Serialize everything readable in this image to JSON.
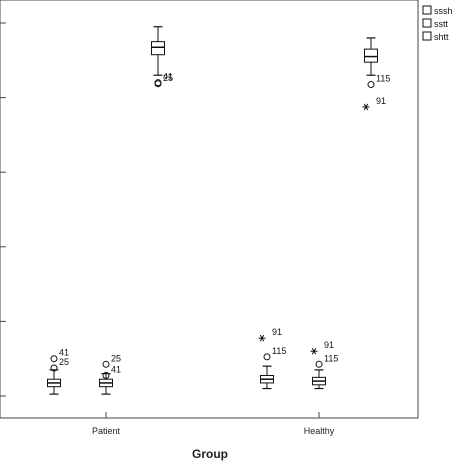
{
  "chart_data": {
    "type": "boxplot",
    "title": "",
    "xlabel": "Group",
    "ylabel": "",
    "categories": [
      "Patient",
      "Healthy"
    ],
    "ylim": [
      0,
      100
    ],
    "legend": {
      "position": "top-right",
      "entries": [
        "sssh",
        "sstt",
        "shtt"
      ]
    },
    "series": [
      {
        "name": "sssh",
        "boxes": [
          {
            "category": "Patient",
            "whisker_low": 0.5,
            "q1": 2.5,
            "median": 3.5,
            "q3": 4.5,
            "whisker_high": 7,
            "outliers": [
              {
                "value": 10,
                "label": "41",
                "marker": "circle"
              },
              {
                "value": 7.5,
                "label": "25",
                "marker": "circle"
              }
            ]
          },
          {
            "category": "Healthy",
            "whisker_low": 2,
            "q1": 3.5,
            "median": 4.5,
            "q3": 5.5,
            "whisker_high": 8,
            "outliers": [
              {
                "value": 15.5,
                "label": "91",
                "marker": "star"
              },
              {
                "value": 10.5,
                "label": "115",
                "marker": "circle"
              }
            ]
          }
        ]
      },
      {
        "name": "sstt",
        "boxes": [
          {
            "category": "Patient",
            "whisker_low": 0.5,
            "q1": 2.5,
            "median": 3.5,
            "q3": 4.5,
            "whisker_high": 6,
            "outliers": [
              {
                "value": 8.5,
                "label": "25",
                "marker": "circle"
              },
              {
                "value": 5.5,
                "label": "41",
                "marker": "circle"
              }
            ]
          },
          {
            "category": "Healthy",
            "whisker_low": 2,
            "q1": 3,
            "median": 4,
            "q3": 5,
            "whisker_high": 7,
            "outliers": [
              {
                "value": 12,
                "label": "91",
                "marker": "star"
              },
              {
                "value": 8.5,
                "label": "115",
                "marker": "circle"
              }
            ]
          }
        ]
      },
      {
        "name": "shtt",
        "boxes": [
          {
            "category": "Patient",
            "whisker_low": 86,
            "q1": 91.5,
            "median": 93.5,
            "q3": 95,
            "whisker_high": 99,
            "outliers": [
              {
                "value": 84,
                "label": "41",
                "marker": "circle"
              },
              {
                "value": 83.7,
                "label": "25",
                "marker": "circle"
              }
            ]
          },
          {
            "category": "Healthy",
            "whisker_low": 86,
            "q1": 89.5,
            "median": 91,
            "q3": 93,
            "whisker_high": 96,
            "outliers": [
              {
                "value": 83.5,
                "label": "115",
                "marker": "circle"
              },
              {
                "value": 77.5,
                "label": "91",
                "marker": "star"
              }
            ]
          }
        ]
      }
    ]
  }
}
